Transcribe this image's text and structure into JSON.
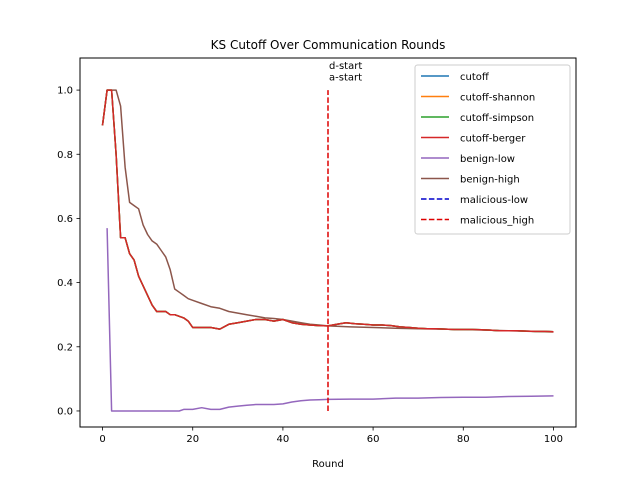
{
  "chart_data": {
    "type": "line",
    "title": "KS Cutoff Over Communication Rounds",
    "xlabel": "Round",
    "ylabel": "",
    "xlim": [
      -5,
      105
    ],
    "ylim": [
      -0.05,
      1.1
    ],
    "xticks": [
      0,
      20,
      40,
      60,
      80,
      100
    ],
    "yticks": [
      0.0,
      0.2,
      0.4,
      0.6,
      0.8,
      1.0
    ],
    "xtick_labels": [
      "0",
      "20",
      "40",
      "60",
      "80",
      "100"
    ],
    "ytick_labels": [
      "0.0",
      "0.2",
      "0.4",
      "0.6",
      "0.8",
      "1.0"
    ],
    "grid": false,
    "legend_position": "top-right",
    "colors": {
      "cutoff": "#1f77b4",
      "cutoff-shannon": "#ff7f0e",
      "cutoff-simpson": "#2ca02c",
      "cutoff-berger": "#d62728",
      "benign-low": "#9467bd",
      "benign-high": "#8c564b",
      "malicious-low": "#0000cc",
      "malicious_high": "#dd0000"
    },
    "series": [
      {
        "name": "cutoff",
        "style": "solid",
        "x": [
          0,
          1,
          2,
          3,
          4,
          5,
          6,
          7,
          8,
          9,
          10,
          11,
          12,
          13,
          14,
          15,
          16,
          17,
          18,
          19,
          20,
          22,
          24,
          26,
          28,
          30,
          32,
          34,
          36,
          38,
          40,
          42,
          44,
          46,
          48,
          50,
          52,
          54,
          56,
          58,
          60,
          62,
          64,
          66,
          68,
          70,
          72,
          74,
          76,
          78,
          80,
          82,
          84,
          86,
          88,
          90,
          92,
          94,
          96,
          98,
          100
        ],
        "y": [
          0.89,
          1.0,
          1.0,
          0.8,
          0.54,
          0.54,
          0.49,
          0.47,
          0.42,
          0.39,
          0.36,
          0.33,
          0.31,
          0.31,
          0.31,
          0.3,
          0.3,
          0.295,
          0.29,
          0.28,
          0.26,
          0.26,
          0.26,
          0.255,
          0.27,
          0.275,
          0.28,
          0.285,
          0.285,
          0.28,
          0.285,
          0.275,
          0.27,
          0.268,
          0.266,
          0.265,
          0.27,
          0.275,
          0.272,
          0.27,
          0.268,
          0.268,
          0.266,
          0.262,
          0.26,
          0.258,
          0.256,
          0.256,
          0.255,
          0.254,
          0.254,
          0.254,
          0.253,
          0.252,
          0.25,
          0.25,
          0.25,
          0.249,
          0.248,
          0.248,
          0.247
        ]
      },
      {
        "name": "cutoff-shannon",
        "style": "solid",
        "x": [
          0,
          1,
          2,
          3,
          4,
          5,
          6,
          7,
          8,
          9,
          10,
          11,
          12,
          13,
          14,
          15,
          16,
          17,
          18,
          19,
          20,
          22,
          24,
          26,
          28,
          30,
          32,
          34,
          36,
          38,
          40,
          42,
          44,
          46,
          48,
          50,
          52,
          54,
          56,
          58,
          60,
          62,
          64,
          66,
          68,
          70,
          72,
          74,
          76,
          78,
          80,
          82,
          84,
          86,
          88,
          90,
          92,
          94,
          96,
          98,
          100
        ],
        "y": [
          0.89,
          1.0,
          1.0,
          0.8,
          0.54,
          0.54,
          0.49,
          0.47,
          0.42,
          0.39,
          0.36,
          0.33,
          0.31,
          0.31,
          0.31,
          0.3,
          0.3,
          0.295,
          0.29,
          0.28,
          0.26,
          0.26,
          0.26,
          0.255,
          0.27,
          0.275,
          0.28,
          0.285,
          0.285,
          0.28,
          0.285,
          0.275,
          0.27,
          0.268,
          0.266,
          0.265,
          0.27,
          0.275,
          0.272,
          0.27,
          0.268,
          0.268,
          0.266,
          0.262,
          0.26,
          0.258,
          0.256,
          0.256,
          0.255,
          0.254,
          0.254,
          0.254,
          0.253,
          0.252,
          0.25,
          0.25,
          0.25,
          0.249,
          0.248,
          0.248,
          0.247
        ]
      },
      {
        "name": "cutoff-simpson",
        "style": "solid",
        "x": [
          0,
          1,
          2,
          3,
          4,
          5,
          6,
          7,
          8,
          9,
          10,
          11,
          12,
          13,
          14,
          15,
          16,
          17,
          18,
          19,
          20,
          22,
          24,
          26,
          28,
          30,
          32,
          34,
          36,
          38,
          40,
          42,
          44,
          46,
          48,
          50,
          52,
          54,
          56,
          58,
          60,
          62,
          64,
          66,
          68,
          70,
          72,
          74,
          76,
          78,
          80,
          82,
          84,
          86,
          88,
          90,
          92,
          94,
          96,
          98,
          100
        ],
        "y": [
          0.89,
          1.0,
          1.0,
          0.8,
          0.54,
          0.54,
          0.49,
          0.47,
          0.42,
          0.39,
          0.36,
          0.33,
          0.31,
          0.31,
          0.31,
          0.3,
          0.3,
          0.295,
          0.29,
          0.28,
          0.26,
          0.26,
          0.26,
          0.255,
          0.27,
          0.275,
          0.28,
          0.285,
          0.285,
          0.28,
          0.285,
          0.275,
          0.27,
          0.268,
          0.266,
          0.265,
          0.27,
          0.275,
          0.272,
          0.27,
          0.268,
          0.268,
          0.266,
          0.262,
          0.26,
          0.258,
          0.256,
          0.256,
          0.255,
          0.254,
          0.254,
          0.254,
          0.253,
          0.252,
          0.25,
          0.25,
          0.25,
          0.249,
          0.248,
          0.248,
          0.247
        ]
      },
      {
        "name": "cutoff-berger",
        "style": "solid",
        "x": [
          0,
          1,
          2,
          3,
          4,
          5,
          6,
          7,
          8,
          9,
          10,
          11,
          12,
          13,
          14,
          15,
          16,
          17,
          18,
          19,
          20,
          22,
          24,
          26,
          28,
          30,
          32,
          34,
          36,
          38,
          40,
          42,
          44,
          46,
          48,
          50,
          52,
          54,
          56,
          58,
          60,
          62,
          64,
          66,
          68,
          70,
          72,
          74,
          76,
          78,
          80,
          82,
          84,
          86,
          88,
          90,
          92,
          94,
          96,
          98,
          100
        ],
        "y": [
          0.89,
          1.0,
          1.0,
          0.8,
          0.54,
          0.54,
          0.49,
          0.47,
          0.42,
          0.39,
          0.36,
          0.33,
          0.31,
          0.31,
          0.31,
          0.3,
          0.3,
          0.295,
          0.29,
          0.28,
          0.26,
          0.26,
          0.26,
          0.255,
          0.27,
          0.275,
          0.28,
          0.285,
          0.285,
          0.28,
          0.285,
          0.275,
          0.27,
          0.268,
          0.266,
          0.265,
          0.27,
          0.275,
          0.272,
          0.27,
          0.268,
          0.268,
          0.266,
          0.262,
          0.26,
          0.258,
          0.256,
          0.256,
          0.255,
          0.254,
          0.254,
          0.254,
          0.253,
          0.252,
          0.25,
          0.25,
          0.25,
          0.249,
          0.248,
          0.248,
          0.247
        ]
      },
      {
        "name": "benign-low",
        "style": "solid",
        "x": [
          1,
          2,
          4,
          6,
          8,
          10,
          12,
          14,
          16,
          17,
          18,
          20,
          22,
          24,
          26,
          28,
          30,
          32,
          34,
          36,
          38,
          40,
          42,
          44,
          46,
          48,
          50,
          55,
          60,
          65,
          70,
          75,
          80,
          85,
          90,
          95,
          100
        ],
        "y": [
          0.57,
          0.0,
          0.0,
          0.0,
          0.0,
          0.0,
          0.0,
          0.0,
          0.0,
          0.0,
          0.005,
          0.005,
          0.01,
          0.005,
          0.005,
          0.012,
          0.015,
          0.018,
          0.02,
          0.02,
          0.02,
          0.022,
          0.028,
          0.032,
          0.034,
          0.035,
          0.036,
          0.037,
          0.037,
          0.04,
          0.04,
          0.042,
          0.043,
          0.043,
          0.045,
          0.046,
          0.047
        ]
      },
      {
        "name": "benign-high",
        "style": "solid",
        "x": [
          0,
          1,
          2,
          3,
          4,
          5,
          6,
          7,
          8,
          9,
          10,
          11,
          12,
          13,
          14,
          15,
          16,
          17,
          18,
          19,
          20,
          22,
          24,
          26,
          28,
          30,
          32,
          34,
          36,
          38,
          40,
          42,
          44,
          46,
          48,
          50,
          55,
          60,
          65,
          70,
          75,
          80,
          85,
          90,
          95,
          100
        ],
        "y": [
          0.89,
          1.0,
          1.0,
          1.0,
          0.95,
          0.76,
          0.65,
          0.64,
          0.63,
          0.58,
          0.55,
          0.53,
          0.52,
          0.5,
          0.48,
          0.44,
          0.38,
          0.37,
          0.36,
          0.35,
          0.345,
          0.335,
          0.325,
          0.32,
          0.31,
          0.305,
          0.3,
          0.295,
          0.29,
          0.288,
          0.285,
          0.28,
          0.275,
          0.27,
          0.268,
          0.265,
          0.262,
          0.26,
          0.258,
          0.256,
          0.255,
          0.254,
          0.252,
          0.25,
          0.248,
          0.246
        ]
      },
      {
        "name": "malicious-low",
        "style": "dashed",
        "x": [],
        "y": []
      },
      {
        "name": "malicious_high",
        "style": "dashed",
        "x": [
          50,
          50
        ],
        "y": [
          0.0,
          1.0
        ]
      }
    ],
    "annotations": [
      {
        "text": "d-start",
        "x": 50,
        "y": 1.065
      },
      {
        "text": "a-start",
        "x": 50,
        "y": 1.03
      }
    ]
  }
}
